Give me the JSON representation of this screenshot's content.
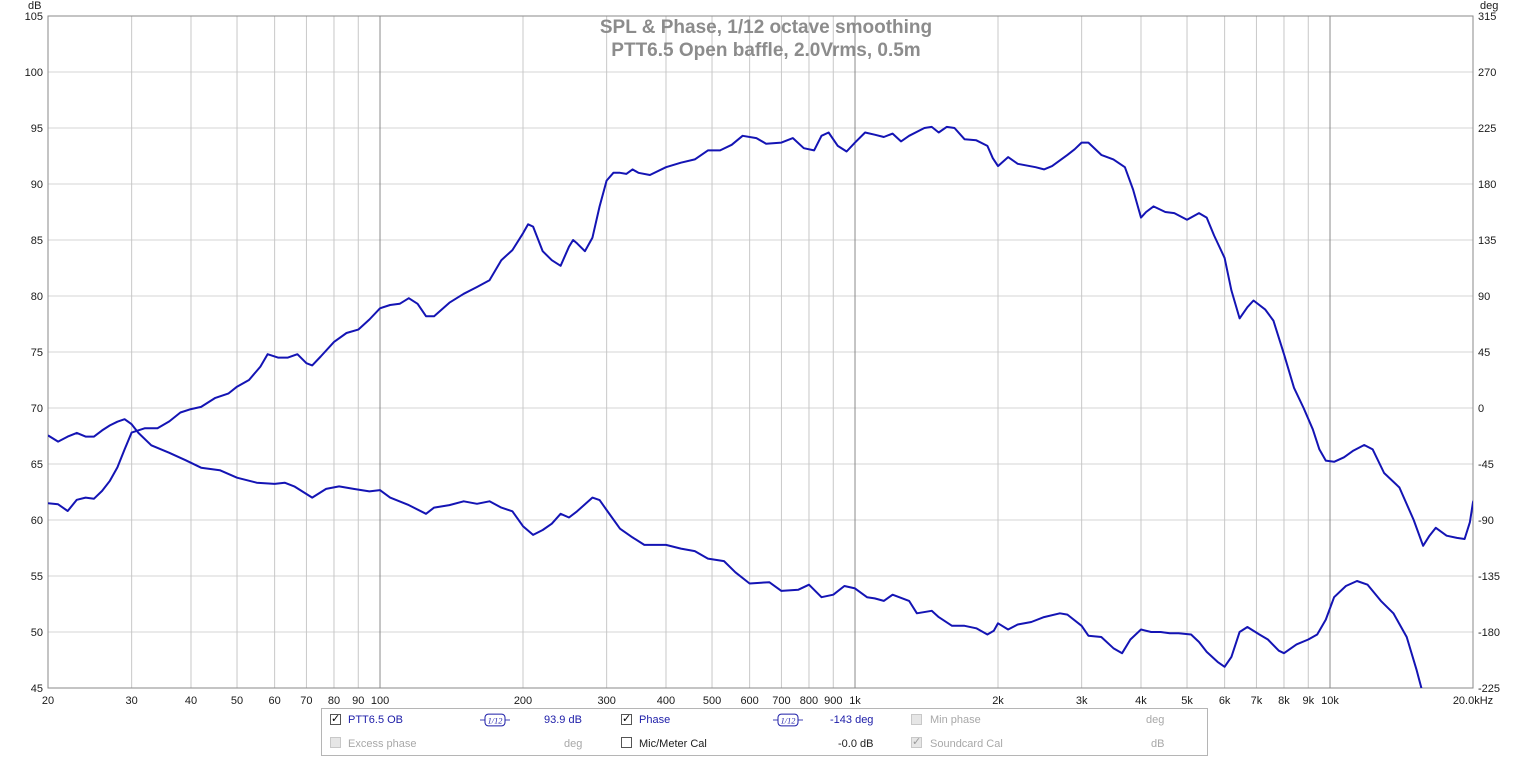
{
  "chart_data": {
    "type": "line",
    "title": "SPL & Phase, 1/12 octave smoothing",
    "subtitle": "PTT6.5 Open baffle, 2.0Vrms,  0.5m",
    "x_scale": "log",
    "xlim": [
      20,
      20000
    ],
    "ylim_left": [
      45,
      105
    ],
    "ylim_right": [
      -225,
      315
    ],
    "left_unit": "dB",
    "right_unit": "deg",
    "x_ticks": [
      {
        "v": 20,
        "label": "20"
      },
      {
        "v": 30,
        "label": "30"
      },
      {
        "v": 40,
        "label": "40"
      },
      {
        "v": 50,
        "label": "50"
      },
      {
        "v": 60,
        "label": "60"
      },
      {
        "v": 70,
        "label": "70"
      },
      {
        "v": 80,
        "label": "80"
      },
      {
        "v": 90,
        "label": "90"
      },
      {
        "v": 100,
        "label": "100"
      },
      {
        "v": 200,
        "label": "200"
      },
      {
        "v": 300,
        "label": "300"
      },
      {
        "v": 400,
        "label": "400"
      },
      {
        "v": 500,
        "label": "500"
      },
      {
        "v": 600,
        "label": "600"
      },
      {
        "v": 700,
        "label": "700"
      },
      {
        "v": 800,
        "label": "800"
      },
      {
        "v": 900,
        "label": "900"
      },
      {
        "v": 1000,
        "label": "1k"
      },
      {
        "v": 2000,
        "label": "2k"
      },
      {
        "v": 3000,
        "label": "3k"
      },
      {
        "v": 4000,
        "label": "4k"
      },
      {
        "v": 5000,
        "label": "5k"
      },
      {
        "v": 6000,
        "label": "6k"
      },
      {
        "v": 7000,
        "label": "7k"
      },
      {
        "v": 8000,
        "label": "8k"
      },
      {
        "v": 9000,
        "label": "9k"
      },
      {
        "v": 10000,
        "label": "10k"
      },
      {
        "v": 20000,
        "label": "20.0kHz"
      }
    ],
    "y_ticks_left": [
      105,
      100,
      95,
      90,
      85,
      80,
      75,
      70,
      65,
      60,
      55,
      50,
      45
    ],
    "y_ticks_right": [
      315,
      270,
      225,
      180,
      135,
      90,
      45,
      0,
      -45,
      -90,
      -135,
      -180,
      -225
    ],
    "grid": true,
    "series": [
      {
        "name": "PTT6.5 OB",
        "axis": "left",
        "color": "#1414b4",
        "points": [
          [
            20,
            61.5
          ],
          [
            21,
            61.4
          ],
          [
            22,
            60.8
          ],
          [
            23,
            61.8
          ],
          [
            24,
            62.0
          ],
          [
            25,
            61.9
          ],
          [
            26,
            62.6
          ],
          [
            27,
            63.5
          ],
          [
            28,
            64.7
          ],
          [
            29,
            66.3
          ],
          [
            30,
            67.8
          ],
          [
            32,
            68.2
          ],
          [
            34,
            68.2
          ],
          [
            36,
            68.8
          ],
          [
            38,
            69.6
          ],
          [
            40,
            69.9
          ],
          [
            42,
            70.1
          ],
          [
            45,
            70.9
          ],
          [
            48,
            71.3
          ],
          [
            50,
            71.9
          ],
          [
            53,
            72.5
          ],
          [
            56,
            73.7
          ],
          [
            58,
            74.8
          ],
          [
            61,
            74.5
          ],
          [
            64,
            74.5
          ],
          [
            67,
            74.8
          ],
          [
            70,
            74.0
          ],
          [
            72,
            73.8
          ],
          [
            75,
            74.6
          ],
          [
            80,
            75.9
          ],
          [
            85,
            76.7
          ],
          [
            90,
            77.0
          ],
          [
            95,
            77.9
          ],
          [
            100,
            78.9
          ],
          [
            105,
            79.2
          ],
          [
            110,
            79.3
          ],
          [
            115,
            79.8
          ],
          [
            120,
            79.3
          ],
          [
            125,
            78.2
          ],
          [
            130,
            78.2
          ],
          [
            140,
            79.4
          ],
          [
            150,
            80.2
          ],
          [
            160,
            80.8
          ],
          [
            170,
            81.4
          ],
          [
            180,
            83.2
          ],
          [
            190,
            84.1
          ],
          [
            200,
            85.6
          ],
          [
            205,
            86.4
          ],
          [
            210,
            86.2
          ],
          [
            220,
            84.0
          ],
          [
            230,
            83.2
          ],
          [
            240,
            82.7
          ],
          [
            250,
            84.4
          ],
          [
            255,
            85.0
          ],
          [
            260,
            84.7
          ],
          [
            270,
            84.0
          ],
          [
            280,
            85.2
          ],
          [
            290,
            88.0
          ],
          [
            300,
            90.3
          ],
          [
            310,
            91.0
          ],
          [
            320,
            91.0
          ],
          [
            330,
            90.9
          ],
          [
            340,
            91.3
          ],
          [
            350,
            91.0
          ],
          [
            370,
            90.8
          ],
          [
            400,
            91.5
          ],
          [
            430,
            91.9
          ],
          [
            460,
            92.2
          ],
          [
            490,
            93.0
          ],
          [
            520,
            93.0
          ],
          [
            550,
            93.5
          ],
          [
            580,
            94.3
          ],
          [
            620,
            94.1
          ],
          [
            650,
            93.6
          ],
          [
            700,
            93.7
          ],
          [
            740,
            94.1
          ],
          [
            780,
            93.2
          ],
          [
            820,
            93.0
          ],
          [
            850,
            94.3
          ],
          [
            880,
            94.6
          ],
          [
            920,
            93.4
          ],
          [
            960,
            92.9
          ],
          [
            1000,
            93.7
          ],
          [
            1050,
            94.6
          ],
          [
            1100,
            94.4
          ],
          [
            1150,
            94.2
          ],
          [
            1200,
            94.5
          ],
          [
            1250,
            93.8
          ],
          [
            1300,
            94.3
          ],
          [
            1400,
            95.0
          ],
          [
            1450,
            95.1
          ],
          [
            1500,
            94.6
          ],
          [
            1560,
            95.1
          ],
          [
            1620,
            95.0
          ],
          [
            1700,
            94.0
          ],
          [
            1800,
            93.9
          ],
          [
            1900,
            93.4
          ],
          [
            1950,
            92.3
          ],
          [
            2000,
            91.6
          ],
          [
            2100,
            92.4
          ],
          [
            2200,
            91.8
          ],
          [
            2400,
            91.5
          ],
          [
            2500,
            91.3
          ],
          [
            2600,
            91.6
          ],
          [
            2800,
            92.6
          ],
          [
            2900,
            93.1
          ],
          [
            3000,
            93.7
          ],
          [
            3100,
            93.7
          ],
          [
            3300,
            92.6
          ],
          [
            3500,
            92.2
          ],
          [
            3700,
            91.5
          ],
          [
            3850,
            89.5
          ],
          [
            4000,
            87.0
          ],
          [
            4100,
            87.5
          ],
          [
            4250,
            88.0
          ],
          [
            4500,
            87.5
          ],
          [
            4700,
            87.4
          ],
          [
            5000,
            86.8
          ],
          [
            5300,
            87.4
          ],
          [
            5500,
            87.0
          ],
          [
            5700,
            85.4
          ],
          [
            6000,
            83.4
          ],
          [
            6200,
            80.5
          ],
          [
            6450,
            78.0
          ],
          [
            6700,
            79.0
          ],
          [
            6900,
            79.6
          ],
          [
            7300,
            78.8
          ],
          [
            7600,
            77.8
          ],
          [
            8000,
            74.8
          ],
          [
            8400,
            71.8
          ],
          [
            8800,
            70.0
          ],
          [
            9200,
            68.1
          ],
          [
            9500,
            66.3
          ],
          [
            9800,
            65.3
          ],
          [
            10200,
            65.2
          ],
          [
            10700,
            65.6
          ],
          [
            11200,
            66.2
          ],
          [
            11800,
            66.7
          ],
          [
            12300,
            66.3
          ],
          [
            13000,
            64.2
          ],
          [
            14000,
            62.9
          ],
          [
            15000,
            60.0
          ],
          [
            15700,
            57.7
          ],
          [
            16200,
            58.6
          ],
          [
            16700,
            59.3
          ],
          [
            17600,
            58.6
          ],
          [
            18500,
            58.4
          ],
          [
            19200,
            58.3
          ],
          [
            19700,
            59.8
          ],
          [
            20000,
            61.6
          ],
          [
            20400,
            62.4
          ]
        ]
      },
      {
        "name": "Phase",
        "axis": "right",
        "color": "#1414b4",
        "points": [
          [
            20,
            -22
          ],
          [
            21,
            -27
          ],
          [
            22,
            -23
          ],
          [
            23,
            -20
          ],
          [
            24,
            -23
          ],
          [
            25,
            -23
          ],
          [
            26,
            -18
          ],
          [
            27,
            -14
          ],
          [
            28,
            -11
          ],
          [
            29,
            -9
          ],
          [
            30,
            -13
          ],
          [
            31,
            -20
          ],
          [
            33,
            -30
          ],
          [
            36,
            -36
          ],
          [
            39,
            -42
          ],
          [
            42,
            -48
          ],
          [
            46,
            -50
          ],
          [
            50,
            -56
          ],
          [
            55,
            -60
          ],
          [
            60,
            -61
          ],
          [
            63,
            -60
          ],
          [
            66,
            -63
          ],
          [
            72,
            -72
          ],
          [
            77,
            -65
          ],
          [
            82,
            -63
          ],
          [
            88,
            -65
          ],
          [
            95,
            -67
          ],
          [
            100,
            -66
          ],
          [
            105,
            -72
          ],
          [
            115,
            -78
          ],
          [
            125,
            -85
          ],
          [
            130,
            -80
          ],
          [
            140,
            -78
          ],
          [
            150,
            -75
          ],
          [
            160,
            -77
          ],
          [
            170,
            -75
          ],
          [
            180,
            -80
          ],
          [
            190,
            -83
          ],
          [
            200,
            -95
          ],
          [
            210,
            -102
          ],
          [
            220,
            -98
          ],
          [
            230,
            -93
          ],
          [
            240,
            -85
          ],
          [
            250,
            -88
          ],
          [
            260,
            -83
          ],
          [
            280,
            -72
          ],
          [
            290,
            -74
          ],
          [
            300,
            -82
          ],
          [
            320,
            -97
          ],
          [
            340,
            -104
          ],
          [
            360,
            -110
          ],
          [
            380,
            -110
          ],
          [
            400,
            -110
          ],
          [
            430,
            -113
          ],
          [
            460,
            -115
          ],
          [
            490,
            -121
          ],
          [
            530,
            -123
          ],
          [
            560,
            -132
          ],
          [
            600,
            -141
          ],
          [
            660,
            -140
          ],
          [
            700,
            -147
          ],
          [
            760,
            -146
          ],
          [
            800,
            -142
          ],
          [
            850,
            -152
          ],
          [
            900,
            -150
          ],
          [
            950,
            -143
          ],
          [
            1000,
            -145
          ],
          [
            1060,
            -152
          ],
          [
            1100,
            -153
          ],
          [
            1150,
            -155
          ],
          [
            1200,
            -150
          ],
          [
            1300,
            -155
          ],
          [
            1350,
            -165
          ],
          [
            1450,
            -163
          ],
          [
            1500,
            -168
          ],
          [
            1600,
            -175
          ],
          [
            1700,
            -175
          ],
          [
            1800,
            -177
          ],
          [
            1900,
            -182
          ],
          [
            1960,
            -179
          ],
          [
            2000,
            -173
          ],
          [
            2100,
            -178
          ],
          [
            2200,
            -174
          ],
          [
            2350,
            -172
          ],
          [
            2500,
            -168
          ],
          [
            2700,
            -165
          ],
          [
            2800,
            -166
          ],
          [
            3000,
            -175
          ],
          [
            3100,
            -183
          ],
          [
            3300,
            -184
          ],
          [
            3500,
            -193
          ],
          [
            3650,
            -197
          ],
          [
            3800,
            -186
          ],
          [
            4000,
            -178
          ],
          [
            4200,
            -180
          ],
          [
            4400,
            -180
          ],
          [
            4600,
            -181
          ],
          [
            4800,
            -181
          ],
          [
            5100,
            -182
          ],
          [
            5300,
            -188
          ],
          [
            5500,
            -196
          ],
          [
            5800,
            -204
          ],
          [
            6000,
            -208
          ],
          [
            6200,
            -200
          ],
          [
            6450,
            -180
          ],
          [
            6700,
            -176
          ],
          [
            7100,
            -182
          ],
          [
            7400,
            -186
          ],
          [
            7800,
            -195
          ],
          [
            8000,
            -197
          ],
          [
            8500,
            -190
          ],
          [
            9000,
            -186
          ],
          [
            9400,
            -182
          ],
          [
            9800,
            -170
          ],
          [
            10200,
            -152
          ],
          [
            10800,
            -143
          ],
          [
            11400,
            -139
          ],
          [
            12000,
            -142
          ],
          [
            12800,
            -155
          ],
          [
            13600,
            -165
          ],
          [
            14500,
            -184
          ],
          [
            15200,
            -210
          ],
          [
            15600,
            -226
          ]
        ]
      }
    ]
  },
  "legend": {
    "row1": {
      "spl": {
        "checked": true,
        "label": "PTT6.5 OB",
        "smoothing": "1/12",
        "value": "93.9 dB"
      },
      "phase": {
        "checked": true,
        "label": "Phase",
        "smoothing": "1/12",
        "value": "-143 deg"
      },
      "min_phase": {
        "checked": false,
        "label": "Min phase",
        "unit": "deg"
      }
    },
    "row2": {
      "excess_phase": {
        "checked": false,
        "label": "Excess phase",
        "unit": "deg"
      },
      "mic_cal": {
        "checked": false,
        "label": "Mic/Meter Cal",
        "value": "-0.0 dB"
      },
      "soundcard_cal": {
        "checked": true,
        "label": "Soundcard Cal",
        "unit": "dB"
      }
    }
  }
}
